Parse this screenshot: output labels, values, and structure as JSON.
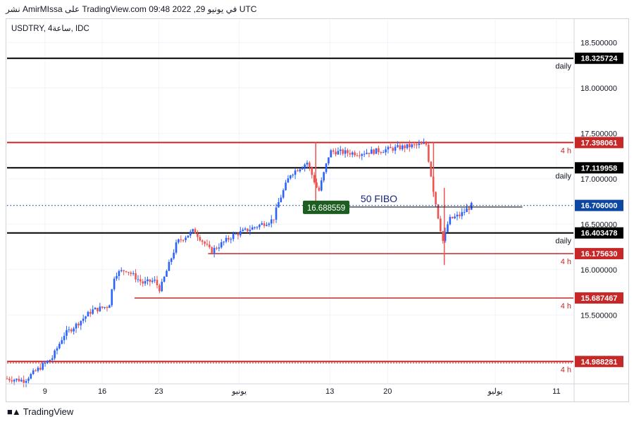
{
  "header": {
    "text": "نشر AmirMIssa على TradingView.com في يونيو 29, 2022 09:48 UTC"
  },
  "footer": {
    "brand": "TradingView",
    "logo_icon": "tradingview-logo-icon"
  },
  "chart_data": {
    "type": "candlestick",
    "symbol": "USDTRY, 4ساعة, IDC",
    "x_ticks": [
      "9",
      "16",
      "23",
      "يونيو",
      "13",
      "20",
      "يوليو",
      "11"
    ],
    "y_ticks": [
      "18.500000",
      "18.000000",
      "17.500000",
      "17.000000",
      "16.500000",
      "16.000000",
      "15.500000"
    ],
    "ylim": [
      14.75,
      18.75
    ],
    "last_price": "16.706000",
    "colors": {
      "up": "#2962ff",
      "down": "#ef5350",
      "support_red": "#c62828",
      "level_black": "#000000",
      "price_line": "#0d47a1",
      "fibo_label_bg": "#1b5e20"
    },
    "levels": [
      {
        "value": 18.325724,
        "label": "18.325724",
        "timeframe": "daily",
        "color": "#000000"
      },
      {
        "value": 17.398061,
        "label": "17.398061",
        "timeframe": "4 h",
        "color": "#c62828"
      },
      {
        "value": 17.119958,
        "label": "17.119958",
        "timeframe": "daily",
        "color": "#000000"
      },
      {
        "value": 16.403478,
        "label": "16.403478",
        "timeframe": "daily",
        "color": "#000000"
      },
      {
        "value": 16.17563,
        "label": "16.175630",
        "timeframe": "4 h",
        "color": "#c62828"
      },
      {
        "value": 15.687467,
        "label": "15.687467",
        "timeframe": "4 h",
        "color": "#c62828"
      },
      {
        "value": 14.988281,
        "label": "14.988281",
        "timeframe": "4 h",
        "color": "#c62828"
      }
    ],
    "fibo": {
      "label": "50 FIBO",
      "value": 16.688559,
      "value_label": "16.688559"
    },
    "price_path": [
      [
        0,
        14.8
      ],
      [
        0.03,
        14.78
      ],
      [
        0.06,
        14.93
      ],
      [
        0.08,
        15.03
      ],
      [
        0.1,
        15.28
      ],
      [
        0.12,
        15.38
      ],
      [
        0.15,
        15.55
      ],
      [
        0.18,
        15.6
      ],
      [
        0.19,
        15.95
      ],
      [
        0.21,
        16.0
      ],
      [
        0.24,
        15.85
      ],
      [
        0.26,
        15.88
      ],
      [
        0.27,
        15.78
      ],
      [
        0.3,
        16.3
      ],
      [
        0.33,
        16.43
      ],
      [
        0.36,
        16.2
      ],
      [
        0.4,
        16.38
      ],
      [
        0.43,
        16.45
      ],
      [
        0.47,
        16.55
      ],
      [
        0.48,
        16.75
      ],
      [
        0.5,
        17.05
      ],
      [
        0.53,
        17.18
      ],
      [
        0.55,
        16.85
      ],
      [
        0.57,
        17.3
      ],
      [
        0.62,
        17.28
      ],
      [
        0.67,
        17.32
      ],
      [
        0.7,
        17.35
      ],
      [
        0.74,
        17.38
      ],
      [
        0.752,
        16.9
      ],
      [
        0.762,
        16.55
      ],
      [
        0.77,
        16.3
      ],
      [
        0.78,
        16.55
      ],
      [
        0.8,
        16.6
      ],
      [
        0.82,
        16.706
      ]
    ]
  }
}
